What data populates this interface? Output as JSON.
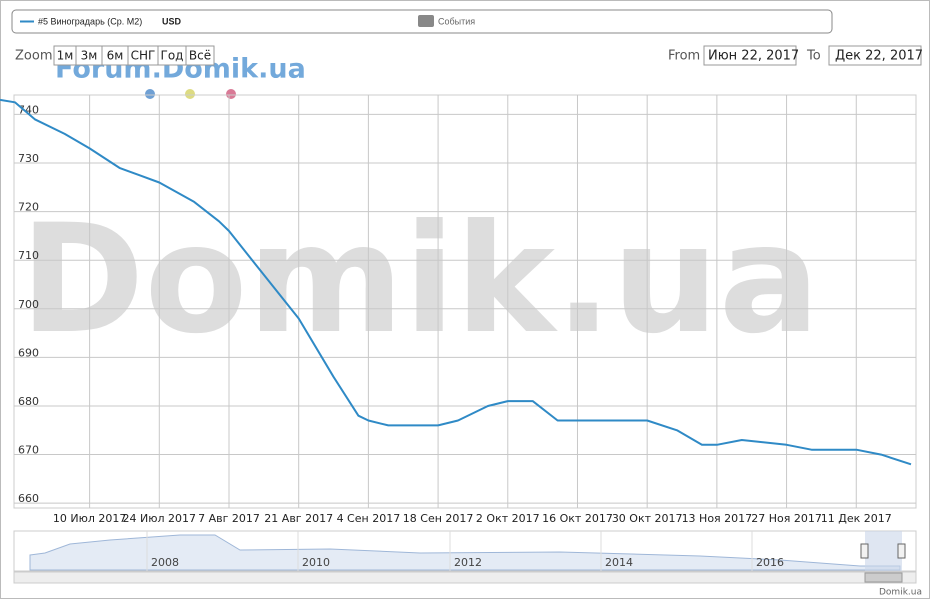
{
  "chart_data": {
    "type": "line",
    "legend": {
      "series_name": "#5 Виноградарь (Ср. М2)",
      "currency": "USD",
      "events": "События"
    },
    "zoom": {
      "label": "Zoom",
      "buttons": [
        "1м",
        "3м",
        "6м",
        "СНГ",
        "Год",
        "Всё"
      ]
    },
    "range": {
      "from_label": "From",
      "from": "Июн 22, 2017",
      "to_label": "To",
      "to": "Дек 22, 2017"
    },
    "watermark": "Domik.ua",
    "forum_watermark": "Forum.Domik.ua",
    "credit": "Domik.ua",
    "x": [
      "2017-06-22",
      "2017-06-25",
      "2017-06-29",
      "2017-07-05",
      "2017-07-10",
      "2017-07-16",
      "2017-07-20",
      "2017-07-24",
      "2017-07-31",
      "2017-08-05",
      "2017-08-07",
      "2017-08-14",
      "2017-08-21",
      "2017-08-28",
      "2017-09-02",
      "2017-09-04",
      "2017-09-08",
      "2017-09-18",
      "2017-09-22",
      "2017-09-28",
      "2017-10-02",
      "2017-10-07",
      "2017-10-12",
      "2017-10-16",
      "2017-10-30",
      "2017-11-05",
      "2017-11-10",
      "2017-11-13",
      "2017-11-18",
      "2017-11-27",
      "2017-12-02",
      "2017-12-11",
      "2017-12-16",
      "2017-12-22"
    ],
    "series": [
      {
        "name": "#5 Виноградарь (Ср. М2)",
        "color": "#2f8ac6",
        "values": [
          743,
          742.5,
          739,
          736,
          733,
          729,
          727.5,
          726,
          722,
          718,
          716,
          707,
          698,
          686,
          678,
          677,
          676,
          676,
          677,
          680,
          681,
          681,
          677,
          677,
          677,
          675,
          672,
          672,
          673,
          672,
          671,
          671,
          670,
          668
        ]
      }
    ],
    "xlim": [
      "2017-06-22",
      "2017-12-23"
    ],
    "xticks": [
      {
        "value": "2017-07-10",
        "label": "10 Июл 2017"
      },
      {
        "value": "2017-07-24",
        "label": "24 Июл 2017"
      },
      {
        "value": "2017-08-07",
        "label": "7 Авг 2017"
      },
      {
        "value": "2017-08-21",
        "label": "21 Авг 2017"
      },
      {
        "value": "2017-09-04",
        "label": "4 Сен 2017"
      },
      {
        "value": "2017-09-18",
        "label": "18 Сен 2017"
      },
      {
        "value": "2017-10-02",
        "label": "2 Окт 2017"
      },
      {
        "value": "2017-10-16",
        "label": "16 Окт 2017"
      },
      {
        "value": "2017-10-30",
        "label": "30 Окт 2017"
      },
      {
        "value": "2017-11-13",
        "label": "13 Ноя 2017"
      },
      {
        "value": "2017-11-27",
        "label": "27 Ноя 2017"
      },
      {
        "value": "2017-12-11",
        "label": "11 Дек 2017"
      }
    ],
    "ylim": [
      659,
      744
    ],
    "yticks": [
      660,
      670,
      680,
      690,
      700,
      710,
      720,
      730,
      740
    ],
    "grid": true,
    "navigator_years": [
      "2008",
      "2010",
      "2012",
      "2014",
      "2016"
    ]
  }
}
